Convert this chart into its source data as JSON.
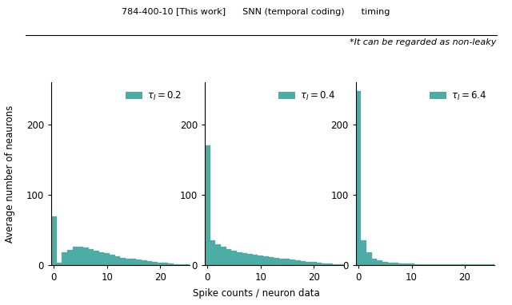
{
  "subplots": [
    {
      "tau_val": "0.2",
      "bar_heights": [
        70,
        4,
        18,
        22,
        26,
        27,
        25,
        23,
        21,
        19,
        17,
        15,
        13,
        11,
        10,
        9,
        8,
        7,
        6,
        5,
        4,
        4,
        3,
        2,
        2,
        1
      ],
      "ylim": [
        0,
        260
      ],
      "yticks": [
        0,
        100,
        200
      ],
      "xlim": [
        -0.5,
        25.5
      ],
      "xticks": [
        0,
        10,
        20
      ]
    },
    {
      "tau_val": "0.4",
      "bar_heights": [
        170,
        35,
        30,
        26,
        23,
        21,
        19,
        17,
        16,
        15,
        14,
        13,
        12,
        11,
        10,
        9,
        8,
        7,
        6,
        5,
        5,
        4,
        3,
        3,
        2,
        1
      ],
      "ylim": [
        0,
        260
      ],
      "yticks": [
        0,
        100,
        200
      ],
      "xlim": [
        -0.5,
        25.5
      ],
      "xticks": [
        0,
        10,
        20
      ]
    },
    {
      "tau_val": "6.4",
      "bar_heights": [
        248,
        35,
        18,
        10,
        7,
        5,
        4,
        4,
        3,
        3,
        3,
        2,
        2,
        2,
        2,
        2,
        2,
        2,
        2,
        2,
        2,
        2,
        1,
        1,
        1,
        1
      ],
      "ylim": [
        0,
        260
      ],
      "yticks": [
        0,
        100,
        200
      ],
      "xlim": [
        -0.5,
        25.5
      ],
      "xticks": [
        0,
        10,
        20
      ]
    }
  ],
  "bar_color": "#4dada4",
  "ylabel": "Average number of neaurons",
  "xlabel": "Spike counts / neuron data",
  "background_color": "#ffffff",
  "top_text_line1": "784-400-10 [This work]      SNN (temporal coding)      timing",
  "top_text_line2": "*It can be regarded as non-leaky",
  "legend_patch_color": "#4dada4",
  "fig_width": 6.4,
  "fig_height": 3.82
}
